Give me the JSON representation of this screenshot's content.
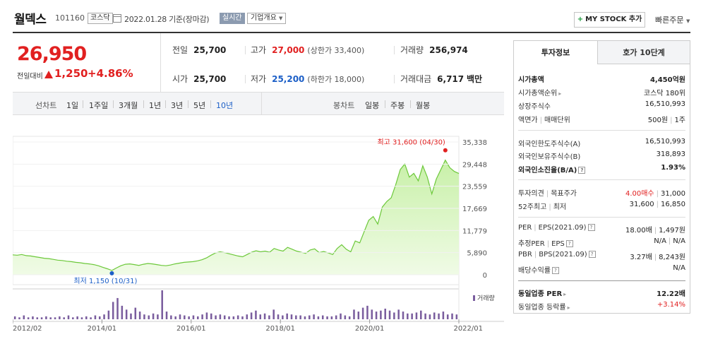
{
  "header": {
    "name": "월덱스",
    "code": "101160",
    "market": "코스닥",
    "date": "2022.01.28 기준(장마감)",
    "realtime": "실시간",
    "company_info": "기업개요",
    "mystock": "MY STOCK 추가",
    "quick_order": "빠른주문"
  },
  "price": {
    "current": "26,950",
    "change_label": "전일대비",
    "change": "1,250",
    "change_pct": "+4.86%",
    "prev_close_label": "전일",
    "prev_close": "25,700",
    "high_label": "고가",
    "high": "27,000",
    "upper_limit": "(상한가 33,400)",
    "volume_label": "거래량",
    "volume": "256,974",
    "open_label": "시가",
    "open": "25,700",
    "low_label": "저가",
    "low": "25,200",
    "lower_limit": "(하한가 18,000)",
    "amount_label": "거래대금",
    "amount": "6,717",
    "amount_unit": "백만"
  },
  "tabs": {
    "line_label": "선차트",
    "periods": [
      "1일",
      "1주일",
      "3개월",
      "1년",
      "3년",
      "5년",
      "10년"
    ],
    "active_period": "10년",
    "candle_label": "봉차트",
    "candles": [
      "일봉",
      "주봉",
      "월봉"
    ]
  },
  "chart_data": {
    "type": "area",
    "yticks": [
      "35,338",
      "29,448",
      "23,559",
      "17,669",
      "11,779",
      "5,890",
      "0"
    ],
    "xticks": [
      "2012/02",
      "2014/01",
      "2016/01",
      "2018/01",
      "2020/01",
      "2022/01"
    ],
    "max_label": "최고 31,600 (04/30)",
    "min_label": "최저 1,150 (10/31)",
    "volume_legend": "거래량",
    "colors": {
      "line": "#6cc83a",
      "fill_top": "#c8f0a8",
      "fill_bottom": "#f0fbe6",
      "volume": "#7a5d9e",
      "max": "#e12020",
      "min": "#1c5fc7"
    },
    "series": [
      {
        "values": [
          5300,
          5200,
          5400,
          5100,
          5000,
          4800,
          4600,
          4400,
          4300,
          4100,
          3900,
          3800,
          3600,
          3500,
          3300,
          3200,
          3000,
          2900,
          2700,
          2400,
          2000,
          1600,
          1150,
          1800,
          2400,
          2800,
          2900,
          2700,
          2500,
          2800,
          3000,
          2900,
          2700,
          2500,
          2400,
          2600,
          2900,
          3100,
          3300,
          3400,
          3500,
          3700,
          4000,
          4500,
          5200,
          5800,
          6100,
          5900,
          5600,
          5300,
          5000,
          4800,
          5400,
          6000,
          6400,
          6100,
          6300,
          6000,
          7000,
          6600,
          6300,
          7300,
          6800,
          6300,
          6000,
          5700,
          6600,
          6900,
          5900,
          6200,
          5800,
          5400,
          7000,
          8000,
          6800,
          6100,
          9000,
          8500,
          11500,
          14500,
          15500,
          13500,
          18000,
          19500,
          20500,
          24000,
          28000,
          29500,
          26000,
          27000,
          25000,
          29000,
          26000,
          21500,
          25500,
          28000,
          30500,
          28500,
          27500,
          26950
        ]
      }
    ],
    "volume": [
      3,
      2,
      4,
      2,
      3,
      2,
      2,
      3,
      2,
      2,
      3,
      2,
      4,
      2,
      3,
      2,
      3,
      2,
      4,
      3,
      5,
      9,
      18,
      22,
      14,
      10,
      6,
      12,
      8,
      5,
      4,
      6,
      5,
      30,
      8,
      4,
      3,
      5,
      4,
      3,
      4,
      3,
      5,
      7,
      6,
      4,
      5,
      4,
      3,
      3,
      4,
      3,
      5,
      7,
      9,
      5,
      6,
      4,
      10,
      5,
      4,
      6,
      5,
      4,
      4,
      3,
      4,
      5,
      3,
      4,
      3,
      3,
      4,
      6,
      4,
      3,
      10,
      8,
      12,
      14,
      10,
      8,
      9,
      11,
      9,
      7,
      10,
      8,
      6,
      6,
      7,
      9,
      6,
      5,
      7,
      6,
      8,
      5,
      6,
      5
    ]
  },
  "invest": {
    "tab_a": "투자정보",
    "tab_b": "호가 10단계",
    "market_cap_label": "시가총액",
    "market_cap": "4,450억원",
    "rank_label": "시가총액순위",
    "rank_market": "코스닥",
    "rank": "180위",
    "shares_label": "상장주식수",
    "shares": "16,510,993",
    "par_label": "액면가",
    "unit_label": "매매단위",
    "par": "500원",
    "unit": "1주",
    "foreign_limit_label": "외국인한도주식수(A)",
    "foreign_limit": "16,510,993",
    "foreign_hold_label": "외국인보유주식수(B)",
    "foreign_hold": "318,893",
    "foreign_ratio_label": "외국인소진율(B/A)",
    "foreign_ratio": "1.93%",
    "opinion_label": "투자의견",
    "target_label": "목표주가",
    "opinion": "4.00매수",
    "target": "31,000",
    "w52_label": "52주최고",
    "w52_low_label": "최저",
    "w52_high": "31,600",
    "w52_low": "16,850",
    "per_label": "PER",
    "eps_label": "EPS(2021.09)",
    "per": "18.00배",
    "eps": "1,497원",
    "est_per_label": "추정PER",
    "est_eps_label": "EPS",
    "est_per": "N/A",
    "est_eps": "N/A",
    "pbr_label": "PBR",
    "bps_label": "BPS(2021.09)",
    "pbr": "3.27배",
    "bps": "8,243원",
    "div_label": "배당수익률",
    "div": "N/A",
    "ind_per_label": "동일업종 PER",
    "ind_per": "12.22배",
    "ind_chg_label": "동일업종 등락률",
    "ind_chg": "+3.14%"
  }
}
